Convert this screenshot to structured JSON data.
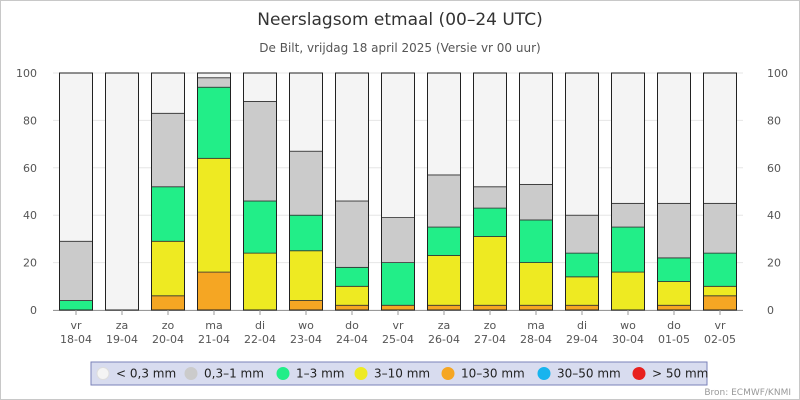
{
  "chart_data": {
    "type": "bar",
    "stacked": true,
    "title": "Neerslagsom etmaal (00–24 UTC)",
    "subtitle": "De Bilt, vrijdag 18 april 2025 (Versie vr 00 uur)",
    "credit": "Bron: ECMWF/KNMI",
    "ylim": [
      0,
      100
    ],
    "yticks": [
      "0",
      "20",
      "40",
      "60",
      "80",
      "100"
    ],
    "grid": true,
    "legend_position": "bottom",
    "categories": [
      {
        "day": "vr",
        "date": "18-04"
      },
      {
        "day": "za",
        "date": "19-04"
      },
      {
        "day": "zo",
        "date": "20-04"
      },
      {
        "day": "ma",
        "date": "21-04"
      },
      {
        "day": "di",
        "date": "22-04"
      },
      {
        "day": "wo",
        "date": "23-04"
      },
      {
        "day": "do",
        "date": "24-04"
      },
      {
        "day": "vr",
        "date": "25-04"
      },
      {
        "day": "za",
        "date": "26-04"
      },
      {
        "day": "zo",
        "date": "27-04"
      },
      {
        "day": "ma",
        "date": "28-04"
      },
      {
        "day": "di",
        "date": "29-04"
      },
      {
        "day": "wo",
        "date": "30-04"
      },
      {
        "day": "do",
        "date": "01-05"
      },
      {
        "day": "vr",
        "date": "02-05"
      }
    ],
    "series": [
      {
        "name": "> 50 mm",
        "color": "#e8201e",
        "values": [
          0,
          0,
          0,
          0,
          0,
          0,
          0,
          0,
          0,
          0,
          0,
          0,
          0,
          0,
          0
        ]
      },
      {
        "name": "30–50 mm",
        "color": "#18b4ee",
        "values": [
          0,
          0,
          0,
          0,
          0,
          0,
          0,
          0,
          0,
          0,
          0,
          0,
          0,
          0,
          0
        ]
      },
      {
        "name": "10–30 mm",
        "color": "#f5a623",
        "values": [
          0,
          0,
          6,
          16,
          0,
          4,
          2,
          2,
          2,
          2,
          2,
          2,
          0,
          2,
          6
        ]
      },
      {
        "name": "3–10 mm",
        "color": "#eeea22",
        "values": [
          0,
          0,
          23,
          48,
          24,
          21,
          8,
          0,
          21,
          29,
          18,
          12,
          16,
          10,
          4
        ]
      },
      {
        "name": "1–3 mm",
        "color": "#22ee88",
        "values": [
          4,
          0,
          23,
          30,
          22,
          15,
          8,
          18,
          12,
          12,
          18,
          10,
          19,
          10,
          14
        ]
      },
      {
        "name": "0,3–1 mm",
        "color": "#cbcbcb",
        "values": [
          25,
          0,
          31,
          4,
          42,
          27,
          28,
          19,
          22,
          9,
          15,
          16,
          10,
          23,
          21
        ]
      },
      {
        "name": "< 0,3 mm",
        "color": "#f4f4f4",
        "values": [
          71,
          100,
          17,
          2,
          12,
          33,
          54,
          61,
          43,
          48,
          47,
          60,
          55,
          55,
          55
        ]
      }
    ],
    "legend_order": [
      "< 0,3 mm",
      "0,3–1 mm",
      "1–3 mm",
      "3–10 mm",
      "10–30 mm",
      "30–50 mm",
      "> 50 mm"
    ]
  }
}
